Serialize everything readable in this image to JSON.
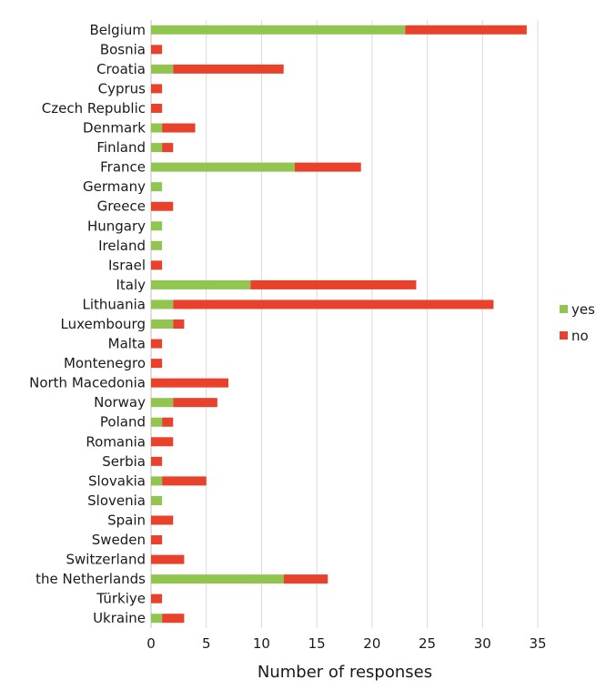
{
  "chart_data": {
    "type": "bar",
    "orientation": "horizontal",
    "stacked": true,
    "title": "",
    "xlabel": "Number of responses",
    "ylabel": "",
    "xlim": [
      0,
      35
    ],
    "xticks": [
      0,
      5,
      10,
      15,
      20,
      25,
      30,
      35
    ],
    "grid": "vertical",
    "legend_position": "right",
    "categories": [
      "Belgium",
      "Bosnia",
      "Croatia",
      "Cyprus",
      "Czech Republic",
      "Denmark",
      "Finland",
      "France",
      "Germany",
      "Greece",
      "Hungary",
      "Ireland",
      "Israel",
      "Italy",
      "Lithuania",
      "Luxembourg",
      "Malta",
      "Montenegro",
      "North Macedonia",
      "Norway",
      "Poland",
      "Romania",
      "Serbia",
      "Slovakia",
      "Slovenia",
      "Spain",
      "Sweden",
      "Switzerland",
      "the Netherlands",
      "Türkiye",
      "Ukraine"
    ],
    "series": [
      {
        "name": "yes",
        "color": "#92c450",
        "values": [
          23,
          0,
          2,
          0,
          0,
          1,
          1,
          13,
          1,
          0,
          1,
          1,
          0,
          9,
          2,
          2,
          0,
          0,
          0,
          2,
          1,
          0,
          0,
          1,
          1,
          0,
          0,
          0,
          12,
          0,
          1
        ]
      },
      {
        "name": "no",
        "color": "#e8422d",
        "values": [
          11,
          1,
          10,
          1,
          1,
          3,
          1,
          6,
          0,
          2,
          0,
          0,
          1,
          15,
          29,
          1,
          1,
          1,
          7,
          4,
          1,
          2,
          1,
          4,
          0,
          2,
          1,
          3,
          4,
          1,
          2
        ]
      }
    ]
  }
}
